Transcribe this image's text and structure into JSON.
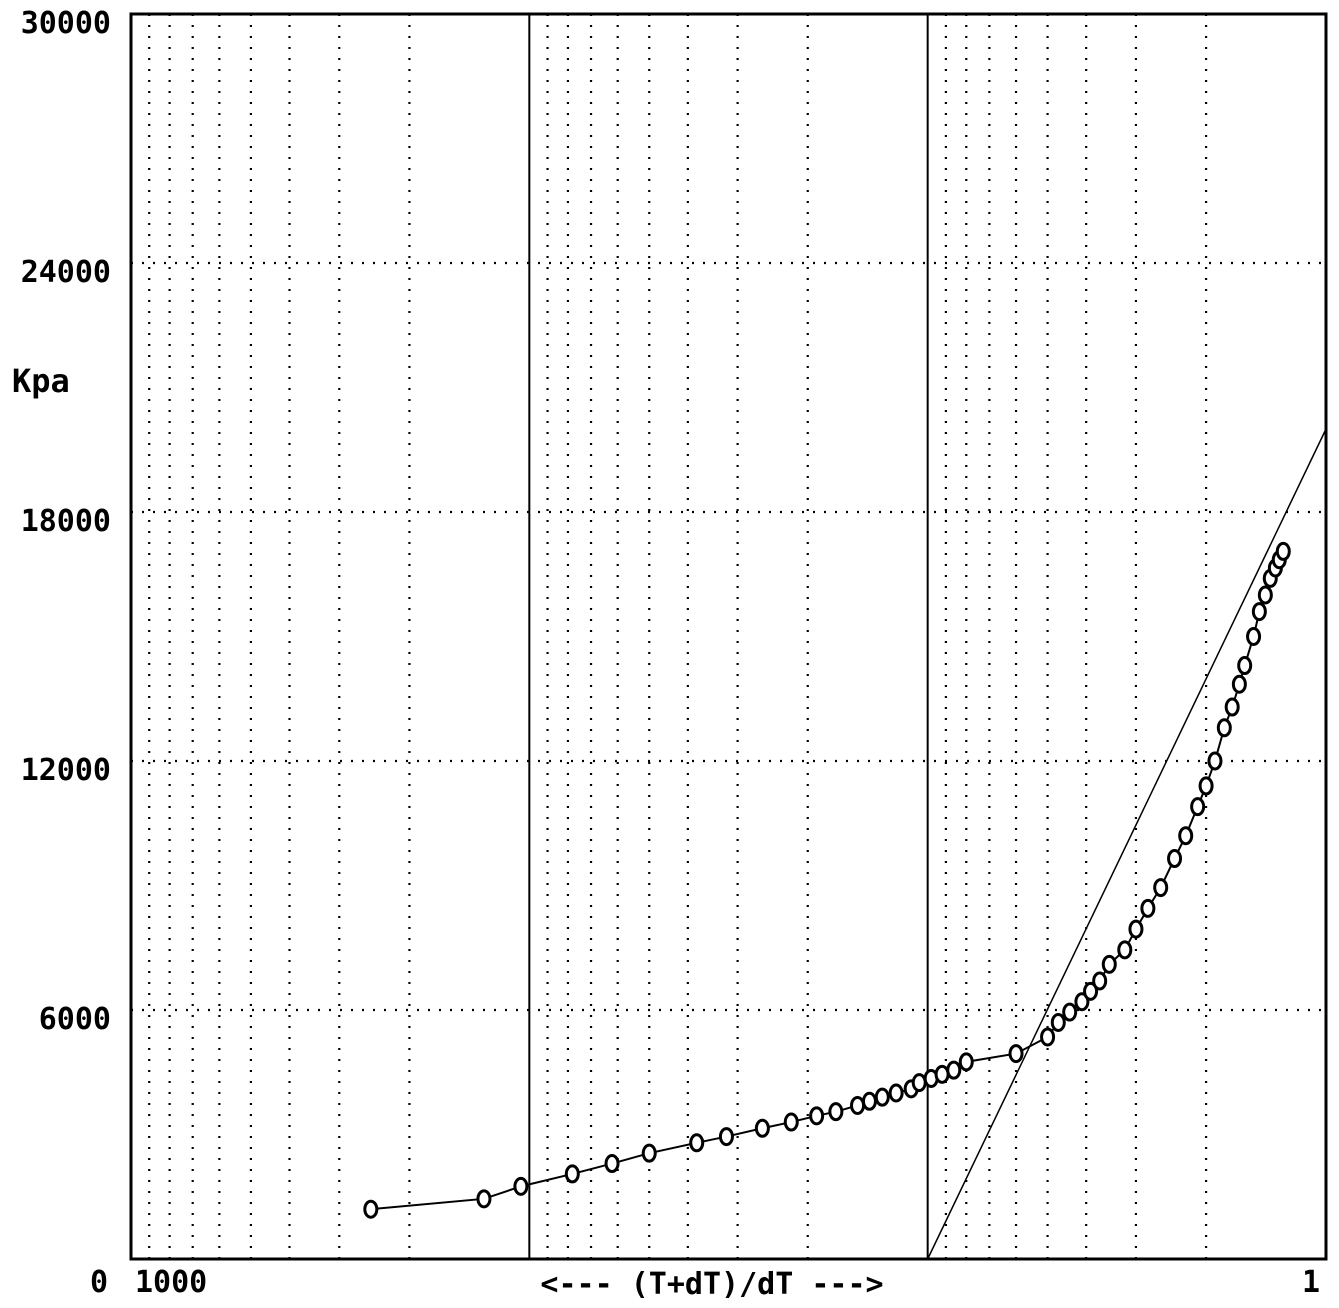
{
  "chart_data": {
    "type": "scatter",
    "title": "",
    "ylabel": "Kpa",
    "xlabel": "<--- (T+dT)/dT --->",
    "x_scale": "log",
    "x_reversed": true,
    "xlim": [
      1000,
      1
    ],
    "ylim": [
      0,
      30000
    ],
    "grid": true,
    "y_ticks": [
      {
        "value": 30000,
        "label": "30000"
      },
      {
        "value": 24000,
        "label": "24000"
      },
      {
        "value": 18000,
        "label": "18000"
      },
      {
        "value": 12000,
        "label": "12000"
      },
      {
        "value": 6000,
        "label": "6000"
      },
      {
        "value": 0,
        "label": "0"
      }
    ],
    "x_ticks": [
      {
        "value": 1000,
        "label": "1000"
      },
      {
        "value": 1,
        "label": "1"
      }
    ],
    "series": [
      {
        "marker": "circle",
        "x": [
          250,
          130,
          105,
          78,
          62,
          50,
          38,
          32,
          26,
          22,
          19,
          17,
          15,
          14,
          13,
          12,
          11,
          10.5,
          9.8,
          9.2,
          8.6,
          8.0,
          6.0,
          5.0,
          4.7,
          4.4,
          4.1,
          3.9,
          3.7,
          3.5,
          3.2,
          3.0,
          2.8,
          2.6,
          2.4,
          2.25,
          2.1,
          2.0,
          1.9,
          1.8,
          1.72,
          1.65,
          1.6,
          1.52,
          1.47,
          1.42,
          1.38,
          1.34,
          1.31,
          1.28
        ],
        "y": [
          1200,
          1450,
          1750,
          2050,
          2300,
          2550,
          2800,
          2950,
          3150,
          3300,
          3450,
          3550,
          3700,
          3800,
          3900,
          4000,
          4100,
          4250,
          4350,
          4450,
          4550,
          4750,
          4950,
          5350,
          5700,
          5950,
          6200,
          6450,
          6700,
          7100,
          7450,
          7950,
          8450,
          8950,
          9650,
          10200,
          10900,
          11400,
          12000,
          12800,
          13300,
          13850,
          14300,
          15000,
          15600,
          16000,
          16400,
          16650,
          16850,
          17050
        ]
      }
    ],
    "annotations": [
      {
        "type": "line",
        "description": "straight-line fit",
        "points": [
          {
            "x": 10,
            "y": 0
          },
          {
            "x": 1,
            "y": 20000
          }
        ]
      }
    ]
  }
}
